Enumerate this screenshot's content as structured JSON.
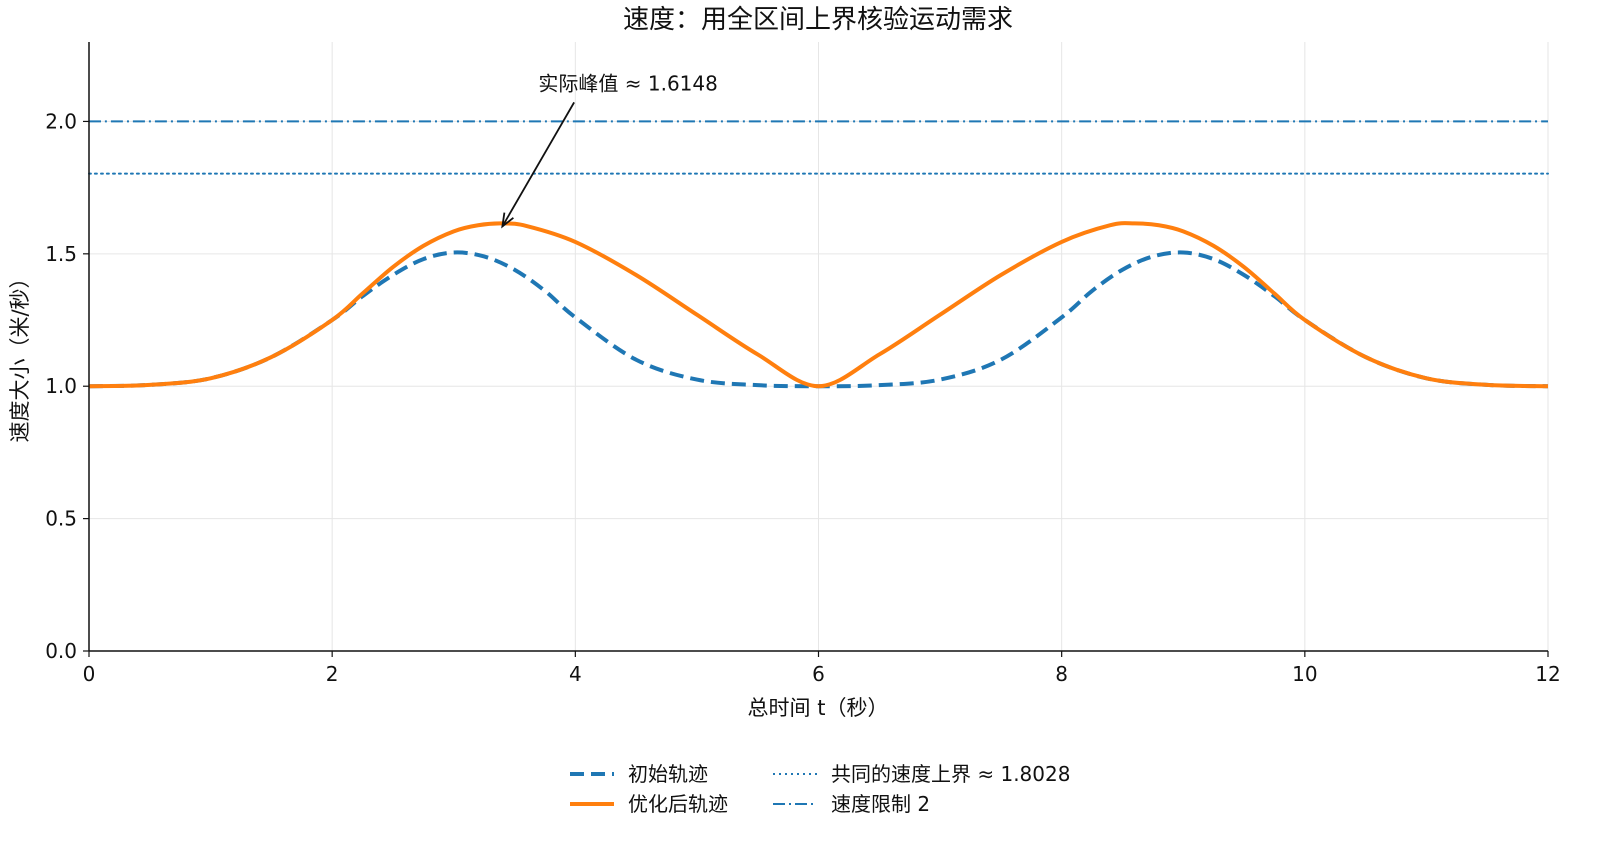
{
  "chart_data": {
    "type": "line",
    "title": "速度：用全区间上界核验运动需求",
    "xlabel": "总时间 t（秒）",
    "ylabel": "速度大小（米/秒）",
    "xlim": [
      0,
      12
    ],
    "ylim": [
      0,
      2.3
    ],
    "x_ticks": [
      0,
      2,
      4,
      6,
      8,
      10,
      12
    ],
    "x_tick_labels": [
      "0",
      "2",
      "4",
      "6",
      "8",
      "10",
      "12"
    ],
    "y_ticks": [
      0,
      0.5,
      1.0,
      1.5,
      2.0
    ],
    "y_tick_labels": [
      "0.0",
      "0.5",
      "1.0",
      "1.5",
      "2.0"
    ],
    "grid": true,
    "legend_position": "bottom-center",
    "series": [
      {
        "name": "初始轨迹",
        "color": "#1f77b4",
        "style": "dashed",
        "x": [
          0,
          0.5,
          1.0,
          1.5,
          2.0,
          2.25,
          2.5,
          2.75,
          3.0,
          3.25,
          3.5,
          3.75,
          4.0,
          4.5,
          5.0,
          5.5,
          6.0,
          6.5,
          7.0,
          7.5,
          8.0,
          8.25,
          8.5,
          8.75,
          9.0,
          9.25,
          9.5,
          9.75,
          10.0,
          10.5,
          11.0,
          11.5,
          12.0
        ],
        "values": [
          1.0,
          1.005,
          1.03,
          1.11,
          1.25,
          1.34,
          1.42,
          1.48,
          1.505,
          1.49,
          1.44,
          1.36,
          1.26,
          1.1,
          1.025,
          1.004,
          1.0,
          1.004,
          1.025,
          1.1,
          1.26,
          1.36,
          1.44,
          1.49,
          1.505,
          1.48,
          1.42,
          1.34,
          1.25,
          1.11,
          1.03,
          1.005,
          1.0
        ]
      },
      {
        "name": "优化后轨迹",
        "color": "#ff7f0e",
        "style": "solid",
        "x": [
          0,
          0.5,
          1.0,
          1.5,
          2.0,
          2.25,
          2.5,
          2.75,
          3.0,
          3.2,
          3.4,
          3.6,
          4.0,
          4.5,
          5.0,
          5.5,
          6.0,
          6.5,
          7.0,
          7.5,
          8.0,
          8.4,
          8.6,
          8.8,
          9.0,
          9.25,
          9.5,
          9.75,
          10.0,
          10.5,
          11.0,
          11.5,
          12.0
        ],
        "values": [
          1.0,
          1.005,
          1.03,
          1.11,
          1.25,
          1.35,
          1.45,
          1.53,
          1.585,
          1.608,
          1.6148,
          1.605,
          1.545,
          1.42,
          1.27,
          1.12,
          1.0,
          1.12,
          1.27,
          1.42,
          1.545,
          1.608,
          1.6148,
          1.608,
          1.585,
          1.53,
          1.45,
          1.35,
          1.25,
          1.11,
          1.03,
          1.005,
          1.0
        ]
      },
      {
        "name": "共同的速度上界 ≈ 1.8028",
        "color": "#1f77b4",
        "style": "dotted",
        "x": [
          0,
          12
        ],
        "values": [
          1.8028,
          1.8028
        ]
      },
      {
        "name": "速度限制 2",
        "color": "#1f77b4",
        "style": "dashdot",
        "x": [
          0,
          12
        ],
        "values": [
          2.0,
          2.0
        ]
      }
    ],
    "annotations": [
      {
        "text": "实际峰值 ≈ 1.6148",
        "x": 3.4,
        "y": 1.6148,
        "text_x": 4.5,
        "text_y": 2.14
      }
    ]
  }
}
